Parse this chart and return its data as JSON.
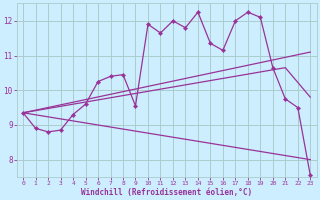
{
  "bg_color": "#cceeff",
  "grid_color": "#aacccc",
  "line_color": "#993399",
  "marker_color": "#993399",
  "xlabel": "Windchill (Refroidissement éolien,°C)",
  "xlabel_color": "#993399",
  "tick_color": "#993399",
  "xlim": [
    -0.5,
    23.5
  ],
  "ylim": [
    7.5,
    12.5
  ],
  "yticks": [
    8,
    9,
    10,
    11,
    12
  ],
  "xticks": [
    0,
    1,
    2,
    3,
    4,
    5,
    6,
    7,
    8,
    9,
    10,
    11,
    12,
    13,
    14,
    15,
    16,
    17,
    18,
    19,
    20,
    21,
    22,
    23
  ],
  "line1_x": [
    0,
    23
  ],
  "line1_y": [
    9.35,
    11.1
  ],
  "line2_x": [
    0,
    23
  ],
  "line2_y": [
    9.35,
    8.0
  ],
  "line3_x": [
    0,
    21,
    23
  ],
  "line3_y": [
    9.35,
    10.65,
    9.8
  ],
  "curve_x": [
    0,
    1,
    2,
    3,
    4,
    5,
    6,
    7,
    8,
    9,
    10,
    11,
    12,
    13,
    14,
    15,
    16,
    17,
    18,
    19,
    20,
    21,
    22,
    23
  ],
  "curve_y": [
    9.35,
    8.9,
    8.8,
    8.85,
    9.3,
    9.6,
    10.25,
    10.4,
    10.45,
    9.55,
    11.9,
    11.65,
    12.0,
    11.8,
    12.25,
    11.35,
    11.15,
    12.0,
    12.25,
    12.1,
    10.65,
    9.75,
    9.5,
    7.55
  ]
}
